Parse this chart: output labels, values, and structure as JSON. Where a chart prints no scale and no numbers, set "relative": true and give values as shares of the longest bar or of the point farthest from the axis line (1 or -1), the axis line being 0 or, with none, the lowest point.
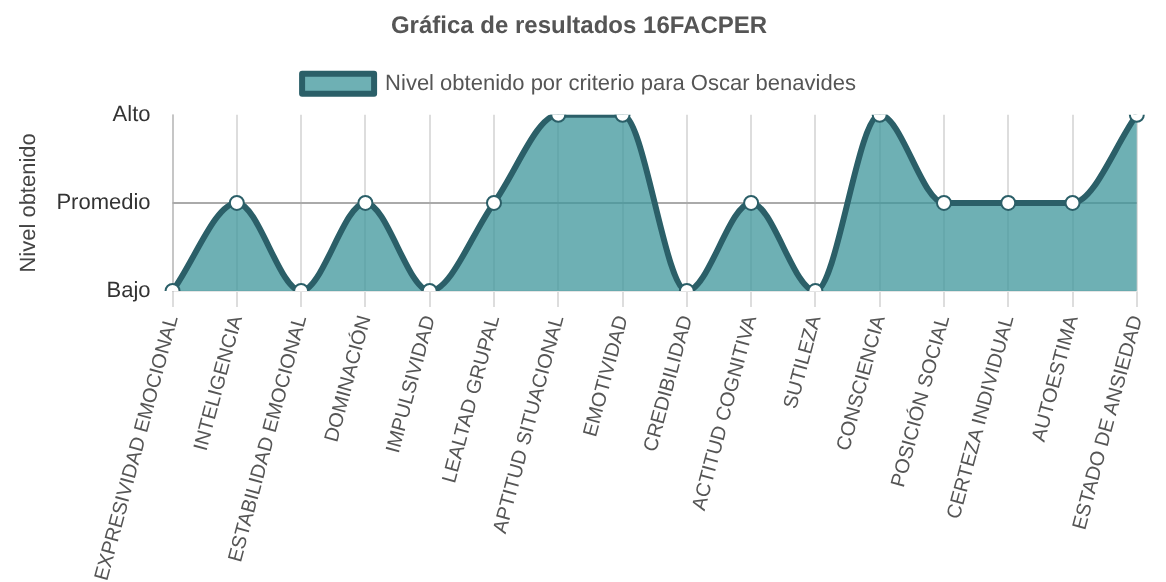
{
  "chart_data": {
    "type": "area",
    "title": "Gráfica de resultados 16FACPER",
    "ylabel": "Nivel obtenido",
    "categories": [
      "EXPRESIVIDAD EMOCIONAL",
      "INTELIGENCIA",
      "ESTABILIDAD EMOCIONAL",
      "DOMINACIÓN",
      "IMPULSIVIDAD",
      "LEALTAD GRUPAL",
      "APTITUD SITUACIONAL",
      "EMOTIVIDAD",
      "CREDIBILIDAD",
      "ACTITUD COGNITIVA",
      "SUTILEZA",
      "CONSCIENCIA",
      "POSICIÓN SOCIAL",
      "CERTEZA INDIVIDUAL",
      "AUTOESTIMA",
      "ESTADO DE ANSIEDAD"
    ],
    "series": [
      {
        "name": "Nivel obtenido por criterio para Oscar benavides",
        "color": "#2b5f68",
        "values": [
          0,
          0.5,
          0,
          0.5,
          0,
          0.5,
          1,
          1,
          0,
          0.5,
          0,
          1,
          0.5,
          0.5,
          0.5,
          1
        ]
      }
    ],
    "relative": true,
    "y_categories": [
      "Alto",
      "Promedio",
      "Bajo"
    ],
    "ref_lines": [
      {
        "axis": "y",
        "value": 0.5,
        "color": "#aaaaaa"
      }
    ],
    "grid": "x",
    "legend": "top",
    "marker": "circle",
    "line_style": "solid"
  }
}
